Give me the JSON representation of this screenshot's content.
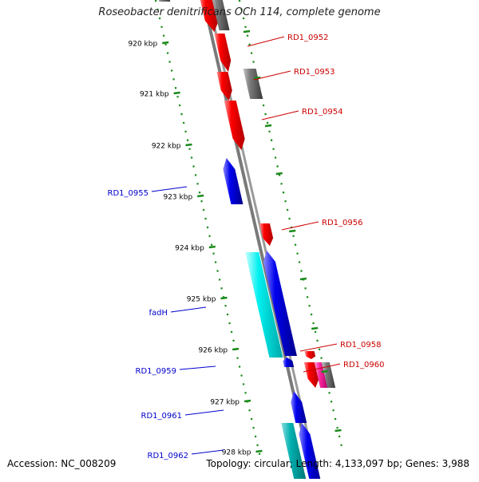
{
  "title": "Roseobacter denitrificans OCh 114, complete genome",
  "footer": {
    "accession": "Accession: NC_008209",
    "topology": "Topology: circular; Length: 4,133,097 bp; Genes: 3,988"
  },
  "colors": {
    "red": "#ff0000",
    "blue": "#0000ee",
    "cyan": "#00e8e8",
    "teal": "#00b0b0",
    "gray": "#777777",
    "pink": "#ff2aa0",
    "backbone": "#8a8a8a",
    "ticks": "#1a8a1a",
    "label_red": "#cc0000",
    "label_blue": "#0000cc"
  },
  "scale": {
    "unit": "kbp",
    "ticks": [
      {
        "label": "920 kbp"
      },
      {
        "label": "921 kbp"
      },
      {
        "label": "922 kbp"
      },
      {
        "label": "923 kbp"
      },
      {
        "label": "924 kbp"
      },
      {
        "label": "925 kbp"
      },
      {
        "label": "926 kbp"
      },
      {
        "label": "927 kbp"
      },
      {
        "label": "928 kbp"
      }
    ]
  },
  "genes": [
    {
      "label": "RD1_0952",
      "color": "red"
    },
    {
      "label": "RD1_0953",
      "color": "gray"
    },
    {
      "label": "RD1_0954",
      "color": "red"
    },
    {
      "label": "RD1_0955",
      "color": "blue"
    },
    {
      "label": "RD1_0956",
      "color": "red"
    },
    {
      "label": "fadH",
      "color": "cyan"
    },
    {
      "label": "RD1_0958",
      "color": "red"
    },
    {
      "label": "RD1_0959",
      "color": "blue"
    },
    {
      "label": "RD1_0960",
      "color": "pink"
    },
    {
      "label": "RD1_0961",
      "color": "blue"
    },
    {
      "label": "RD1_0962",
      "color": "teal"
    }
  ]
}
